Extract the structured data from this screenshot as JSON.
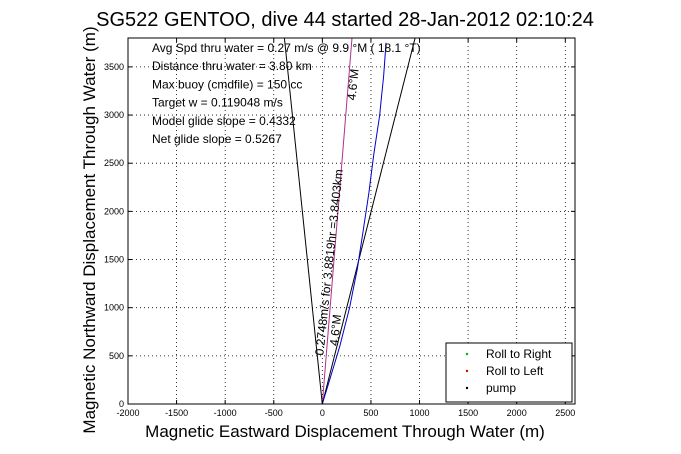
{
  "chart_data": {
    "type": "line",
    "title": "SG522 GENTOO, dive 44 started 28-Jan-2012 02:10:24",
    "xlabel": "Magnetic Eastward Displacement Through Water (m)",
    "ylabel": "Magnetic Northward Displacement Through Water (m)",
    "xlim": [
      -2000,
      2600
    ],
    "ylim": [
      0,
      3800
    ],
    "x_ticks": [
      -2000,
      -1500,
      -1000,
      -500,
      0,
      500,
      1000,
      1500,
      2000,
      2500
    ],
    "y_ticks": [
      0,
      500,
      1000,
      1500,
      2000,
      2500,
      3000,
      3500
    ],
    "grid": true,
    "annotation_lines": [
      "Avg Spd thru water =  0.27 m/s @  9.9  °M ( 18.1 °T)",
      "Distance thru water = 3.80 km",
      "Max buoy (cmdfile) = 150 cc",
      "Target w = 0.119048 m/s",
      "Model glide slope = 0.4332",
      "Net glide slope = 0.5267"
    ],
    "rotated_labels": [
      {
        "text": "0.2748m/s for 3.8819hr =3.8403km",
        "x": 10,
        "y": 500,
        "angle": -84
      },
      {
        "text": "4.6°M",
        "x": 160,
        "y": 600,
        "angle": -84
      },
      {
        "text": "4.6°M",
        "x": 340,
        "y": 3150,
        "angle": -84
      }
    ],
    "series": [
      {
        "name": "",
        "color": "#000000",
        "points": [
          [
            0,
            0
          ],
          [
            -390,
            3800
          ]
        ]
      },
      {
        "name": "",
        "color": "#000000",
        "points": [
          [
            0,
            0
          ],
          [
            955,
            3800
          ]
        ]
      },
      {
        "name": "",
        "color": "#b0308c",
        "points": [
          [
            0,
            0
          ],
          [
            305,
            3800
          ]
        ]
      },
      {
        "name": "",
        "color": "#0000cc",
        "points": [
          [
            0,
            0
          ],
          [
            60,
            200
          ],
          [
            120,
            400
          ],
          [
            180,
            600
          ],
          [
            230,
            800
          ],
          [
            280,
            1000
          ],
          [
            320,
            1200
          ],
          [
            360,
            1400
          ],
          [
            390,
            1600
          ],
          [
            420,
            1800
          ],
          [
            450,
            2000
          ],
          [
            480,
            2200
          ],
          [
            505,
            2400
          ],
          [
            530,
            2600
          ],
          [
            560,
            2800
          ],
          [
            590,
            3000
          ],
          [
            610,
            3200
          ],
          [
            630,
            3400
          ],
          [
            645,
            3600
          ],
          [
            655,
            3750
          ]
        ]
      }
    ],
    "legend": {
      "placement": "bottom-right",
      "entries": [
        {
          "label": "Roll to Right",
          "color": "#00b000"
        },
        {
          "label": "Roll to Left",
          "color": "#dd0000"
        },
        {
          "label": "pump",
          "color": "#000000"
        }
      ]
    }
  }
}
